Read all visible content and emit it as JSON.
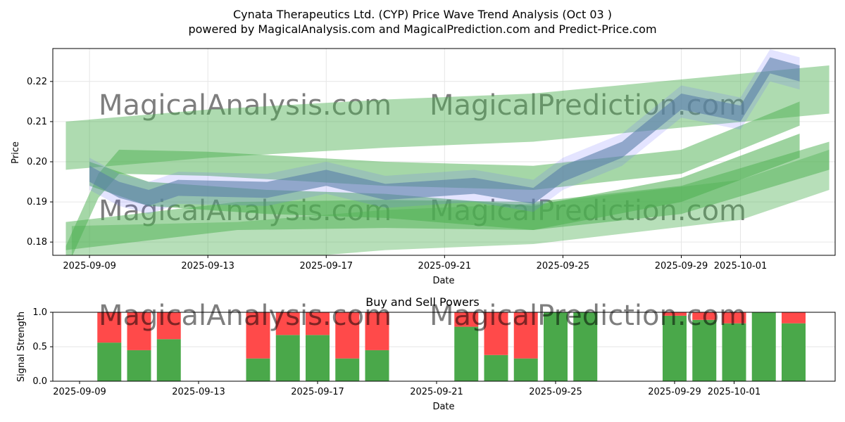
{
  "title": "Cynata Therapeutics Ltd. (CYP) Price Wave Trend Analysis (Oct 03 )",
  "subtitle": "powered by MagicalAnalysis.com and MagicalPrediction.com and Predict-Price.com",
  "watermarks": [
    "MagicalAnalysis.com",
    "MagicalPrediction.com"
  ],
  "colors": {
    "band": "#4caf50",
    "wave": "#6a6aff",
    "buy": "#4aa84a",
    "sell": "#ff4a4a"
  },
  "chart_data": [
    {
      "type": "area",
      "title": "",
      "xlabel": "Date",
      "ylabel": "Price",
      "x_origin": "2025-09-09",
      "xlim_days": [
        -1.24,
        25.2
      ],
      "ylim": [
        0.1767,
        0.2282
      ],
      "x_ticks": [
        {
          "day": 0,
          "label": "2025-09-09"
        },
        {
          "day": 4,
          "label": "2025-09-13"
        },
        {
          "day": 8,
          "label": "2025-09-17"
        },
        {
          "day": 12,
          "label": "2025-09-21"
        },
        {
          "day": 16,
          "label": "2025-09-25"
        },
        {
          "day": 20,
          "label": "2025-09-29"
        },
        {
          "day": 22,
          "label": "2025-10-01"
        }
      ],
      "y_ticks": [
        0.18,
        0.19,
        0.2,
        0.21,
        0.22
      ],
      "grid": true,
      "bands": [
        {
          "name": "green-band-1",
          "width": 0.012,
          "opacity": 0.45,
          "points": [
            [
              -0.8,
              0.204
            ],
            [
              4,
              0.207
            ],
            [
              10,
              0.2095
            ],
            [
              15,
              0.211
            ],
            [
              25,
              0.218
            ]
          ]
        },
        {
          "name": "green-band-2",
          "width": 0.01,
          "opacity": 0.4,
          "points": [
            [
              -0.6,
              0.179
            ],
            [
              5,
              0.18
            ],
            [
              10,
              0.183
            ],
            [
              15,
              0.1845
            ],
            [
              22,
              0.1905
            ],
            [
              25,
              0.198
            ]
          ]
        },
        {
          "name": "green-band-3",
          "width": 0.007,
          "opacity": 0.5,
          "points": [
            [
              -0.8,
              0.1815
            ],
            [
              5,
              0.1865
            ],
            [
              10,
              0.187
            ],
            [
              15,
              0.1865
            ],
            [
              20,
              0.1905
            ],
            [
              25,
              0.2015
            ]
          ]
        },
        {
          "name": "green-band-4",
          "width": 0.006,
          "opacity": 0.5,
          "points": [
            [
              -0.8,
              0.176
            ],
            [
              0.3,
              0.194
            ],
            [
              1,
              0.2
            ],
            [
              4,
              0.1995
            ],
            [
              10,
              0.197
            ],
            [
              15,
              0.196
            ],
            [
              20,
              0.2
            ],
            [
              24,
              0.212
            ]
          ]
        },
        {
          "name": "green-band-5",
          "width": 0.006,
          "opacity": 0.55,
          "points": [
            [
              0,
              0.197
            ],
            [
              2,
              0.192
            ],
            [
              6,
              0.19
            ],
            [
              10,
              0.189
            ],
            [
              15,
              0.186
            ],
            [
              20,
              0.193
            ],
            [
              24,
              0.204
            ]
          ]
        }
      ],
      "wave": {
        "name": "price-wave",
        "width": 0.004,
        "points": [
          [
            0,
            0.197
          ],
          [
            1,
            0.193
          ],
          [
            2,
            0.191
          ],
          [
            3,
            0.1935
          ],
          [
            6,
            0.193
          ],
          [
            8,
            0.196
          ],
          [
            10,
            0.1925
          ],
          [
            13,
            0.194
          ],
          [
            15,
            0.1915
          ],
          [
            16,
            0.197
          ],
          [
            18,
            0.203
          ],
          [
            20,
            0.215
          ],
          [
            22,
            0.212
          ],
          [
            23,
            0.224
          ],
          [
            24,
            0.222
          ]
        ]
      }
    },
    {
      "type": "bar",
      "title": "Buy and Sell Powers",
      "xlabel": "Date",
      "ylabel": "Signal Strength",
      "ylim": [
        0,
        1
      ],
      "y_ticks": [
        "0.0",
        "0.5",
        "1.0"
      ],
      "categories": [
        "2025-09-10",
        "2025-09-11",
        "2025-09-12",
        "2025-09-15",
        "2025-09-16",
        "2025-09-17",
        "2025-09-18",
        "2025-09-19",
        "2025-09-22",
        "2025-09-23",
        "2025-09-24",
        "2025-09-25",
        "2025-09-26",
        "2025-09-29",
        "2025-09-30",
        "2025-10-01",
        "2025-10-02",
        "2025-10-03"
      ],
      "day_offsets": [
        1,
        2,
        3,
        6,
        7,
        8,
        9,
        10,
        13,
        14,
        15,
        16,
        17,
        20,
        21,
        22,
        23,
        24
      ],
      "series": [
        {
          "name": "Buy",
          "values": [
            0.56,
            0.45,
            0.61,
            0.33,
            0.67,
            0.67,
            0.33,
            0.45,
            0.79,
            0.38,
            0.33,
            1.0,
            1.0,
            0.95,
            0.89,
            0.84,
            1.0,
            0.84
          ]
        },
        {
          "name": "Sell",
          "values": [
            0.44,
            0.55,
            0.39,
            0.67,
            0.33,
            0.33,
            0.67,
            0.55,
            0.21,
            0.62,
            0.67,
            0.0,
            0.0,
            0.05,
            0.11,
            0.16,
            0.0,
            0.16
          ]
        }
      ]
    }
  ]
}
